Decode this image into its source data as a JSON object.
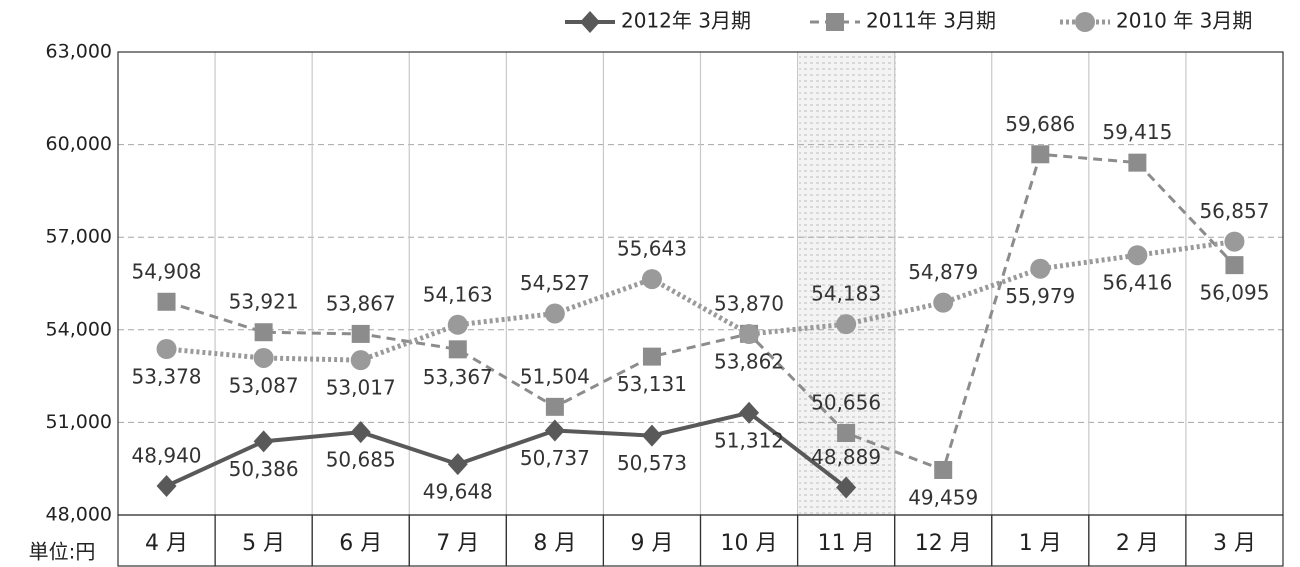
{
  "chart_data": {
    "type": "line",
    "unit_label": "単位:円",
    "categories": [
      "4 月",
      "5 月",
      "6 月",
      "7 月",
      "8 月",
      "9 月",
      "10 月",
      "11 月",
      "12 月",
      "1 月",
      "2 月",
      "3 月"
    ],
    "series": [
      {
        "name": "2012年 3月期",
        "color": "#595959",
        "marker": "diamond",
        "dash": "solid",
        "values": [
          48940,
          50386,
          50685,
          49648,
          50737,
          50573,
          51312,
          48889,
          null,
          null,
          null,
          null
        ],
        "value_labels": [
          "48,940",
          "50,386",
          "50,685",
          "49,648",
          "50,737",
          "50,573",
          "51,312",
          "48,889",
          null,
          null,
          null,
          null
        ]
      },
      {
        "name": "2011年 3月期",
        "color": "#8c8c8c",
        "marker": "square",
        "dash": "dashed",
        "values": [
          54908,
          53921,
          53867,
          53367,
          51504,
          53131,
          53870,
          50656,
          49459,
          59686,
          59415,
          56095
        ],
        "value_labels": [
          "54,908",
          "53,921",
          "53,867",
          "53,367",
          "51,504",
          "53,131",
          "53,870",
          "50,656",
          "49,459",
          "59,686",
          "59,415",
          "56,095"
        ]
      },
      {
        "name": "2010 年 3月期",
        "color": "#9a9a9a",
        "marker": "circle",
        "dash": "dotted",
        "values": [
          53378,
          53087,
          53017,
          54163,
          54527,
          55643,
          53862,
          54183,
          54879,
          55979,
          56416,
          56857
        ],
        "value_labels": [
          "53,378",
          "53,087",
          "53,017",
          "54,163",
          "54,527",
          "55,643",
          "53,862",
          "54,183",
          "54,879",
          "55,979",
          "56,416",
          "56,857"
        ]
      }
    ],
    "ylim": [
      48000,
      63000
    ],
    "yticks": [
      {
        "value": 48000,
        "label": "48,000"
      },
      {
        "value": 51000,
        "label": "51,000"
      },
      {
        "value": 54000,
        "label": "54,000"
      },
      {
        "value": 57000,
        "label": "57,000"
      },
      {
        "value": 60000,
        "label": "60,000"
      },
      {
        "value": 63000,
        "label": "63,000"
      }
    ],
    "grid": true,
    "legend": "top-right"
  }
}
